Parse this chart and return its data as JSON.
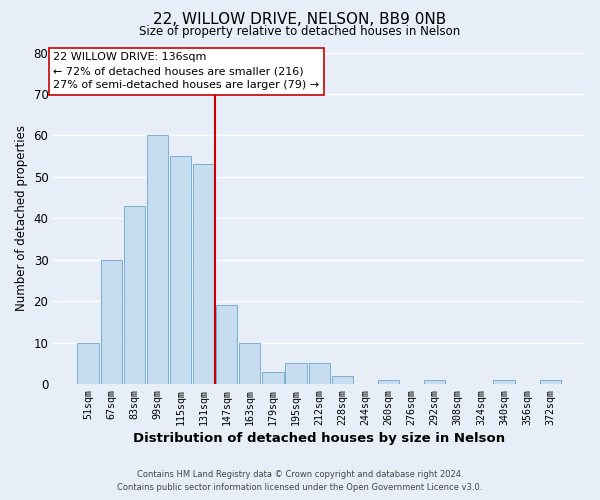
{
  "title": "22, WILLOW DRIVE, NELSON, BB9 0NB",
  "subtitle": "Size of property relative to detached houses in Nelson",
  "xlabel": "Distribution of detached houses by size in Nelson",
  "ylabel": "Number of detached properties",
  "bar_labels": [
    "51sqm",
    "67sqm",
    "83sqm",
    "99sqm",
    "115sqm",
    "131sqm",
    "147sqm",
    "163sqm",
    "179sqm",
    "195sqm",
    "212sqm",
    "228sqm",
    "244sqm",
    "260sqm",
    "276sqm",
    "292sqm",
    "308sqm",
    "324sqm",
    "340sqm",
    "356sqm",
    "372sqm"
  ],
  "bar_values": [
    10,
    30,
    43,
    60,
    55,
    53,
    19,
    10,
    3,
    5,
    5,
    2,
    0,
    1,
    0,
    1,
    0,
    0,
    1,
    0,
    1
  ],
  "bar_color": "#c5ddef",
  "bar_edge_color": "#7aaed0",
  "vline_x_index": 6.0,
  "vline_color": "#cc0000",
  "ylim": [
    0,
    80
  ],
  "yticks": [
    0,
    10,
    20,
    30,
    40,
    50,
    60,
    70,
    80
  ],
  "annotation_line1": "22 WILLOW DRIVE: 136sqm",
  "annotation_line2": "← 72% of detached houses are smaller (216)",
  "annotation_line3": "27% of semi-detached houses are larger (79) →",
  "footer_line1": "Contains HM Land Registry data © Crown copyright and database right 2024.",
  "footer_line2": "Contains public sector information licensed under the Open Government Licence v3.0.",
  "bg_color": "#e8eef8",
  "plot_bg_color": "#e8eef8",
  "grid_color": "#ffffff",
  "annotation_box_color": "#ffffff",
  "annotation_border_color": "#cc0000"
}
